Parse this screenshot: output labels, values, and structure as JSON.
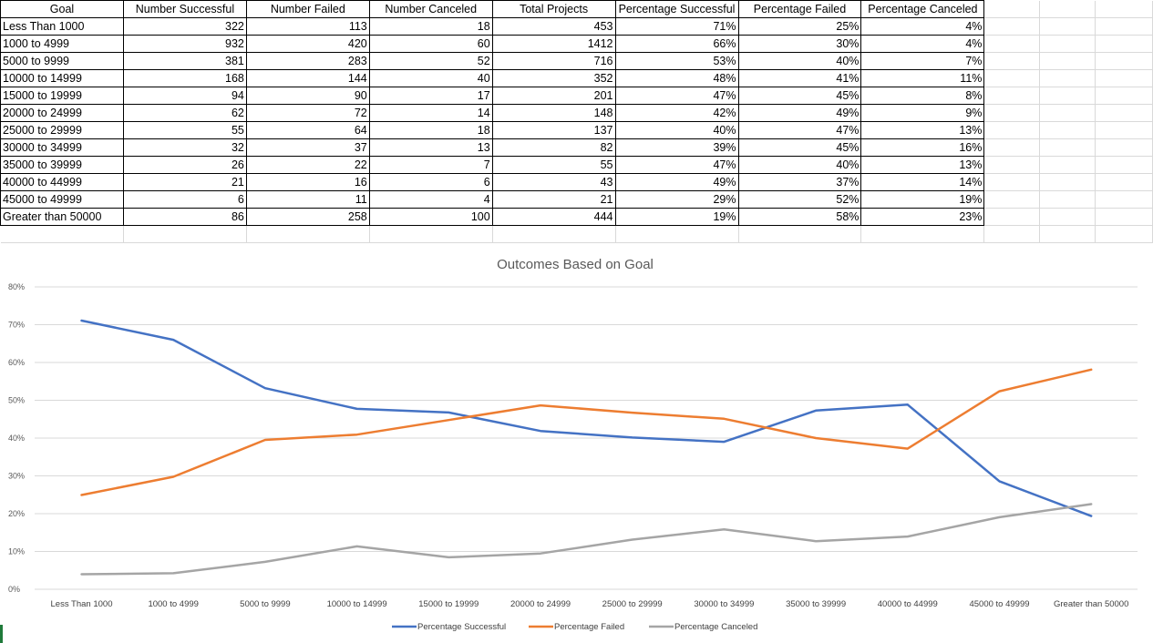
{
  "table": {
    "headers": [
      "Goal",
      "Number Successful",
      "Number Failed",
      "Number Canceled",
      "Total Projects",
      "Percentage Successful",
      "Percentage Failed",
      "Percentage Canceled"
    ],
    "rows": [
      [
        "Less Than 1000",
        "322",
        "113",
        "18",
        "453",
        "71%",
        "25%",
        "4%"
      ],
      [
        "1000 to 4999",
        "932",
        "420",
        "60",
        "1412",
        "66%",
        "30%",
        "4%"
      ],
      [
        "5000 to 9999",
        "381",
        "283",
        "52",
        "716",
        "53%",
        "40%",
        "7%"
      ],
      [
        "10000 to 14999",
        "168",
        "144",
        "40",
        "352",
        "48%",
        "41%",
        "11%"
      ],
      [
        "15000 to 19999",
        "94",
        "90",
        "17",
        "201",
        "47%",
        "45%",
        "8%"
      ],
      [
        "20000 to 24999",
        "62",
        "72",
        "14",
        "148",
        "42%",
        "49%",
        "9%"
      ],
      [
        "25000 to 29999",
        "55",
        "64",
        "18",
        "137",
        "40%",
        "47%",
        "13%"
      ],
      [
        "30000 to 34999",
        "32",
        "37",
        "13",
        "82",
        "39%",
        "45%",
        "16%"
      ],
      [
        "35000 to 39999",
        "26",
        "22",
        "7",
        "55",
        "47%",
        "40%",
        "13%"
      ],
      [
        "40000 to 44999",
        "21",
        "16",
        "6",
        "43",
        "49%",
        "37%",
        "14%"
      ],
      [
        "45000 to 49999",
        "6",
        "11",
        "4",
        "21",
        "29%",
        "52%",
        "19%"
      ],
      [
        "Greater than 50000",
        "86",
        "258",
        "100",
        "444",
        "19%",
        "58%",
        "23%"
      ]
    ]
  },
  "chart_data": {
    "type": "line",
    "title": "Outcomes Based on Goal",
    "categories": [
      "Less Than 1000",
      "1000 to 4999",
      "5000 to 9999",
      "10000 to 14999",
      "15000 to 19999",
      "20000 to 24999",
      "25000 to 29999",
      "30000 to 34999",
      "35000 to 39999",
      "40000 to 44999",
      "45000 to 49999",
      "Greater than 50000"
    ],
    "series": [
      {
        "name": "Percentage Successful",
        "color": "#4472c4",
        "values": [
          71.08,
          66.01,
          53.21,
          47.73,
          46.77,
          41.89,
          40.15,
          39.02,
          47.27,
          48.84,
          28.57,
          19.37
        ]
      },
      {
        "name": "Percentage Failed",
        "color": "#ed7d31",
        "values": [
          24.94,
          29.75,
          39.53,
          40.91,
          44.78,
          48.65,
          46.72,
          45.12,
          40.0,
          37.21,
          52.38,
          58.11
        ]
      },
      {
        "name": "Percentage Canceled",
        "color": "#a5a5a5",
        "values": [
          3.97,
          4.25,
          7.26,
          11.36,
          8.46,
          9.46,
          13.14,
          15.85,
          12.73,
          13.95,
          19.05,
          22.52
        ]
      }
    ],
    "yticks": [
      "0%",
      "10%",
      "20%",
      "30%",
      "40%",
      "50%",
      "60%",
      "70%",
      "80%"
    ],
    "ylim": [
      0,
      80
    ],
    "grid": true,
    "legend_position": "bottom"
  }
}
